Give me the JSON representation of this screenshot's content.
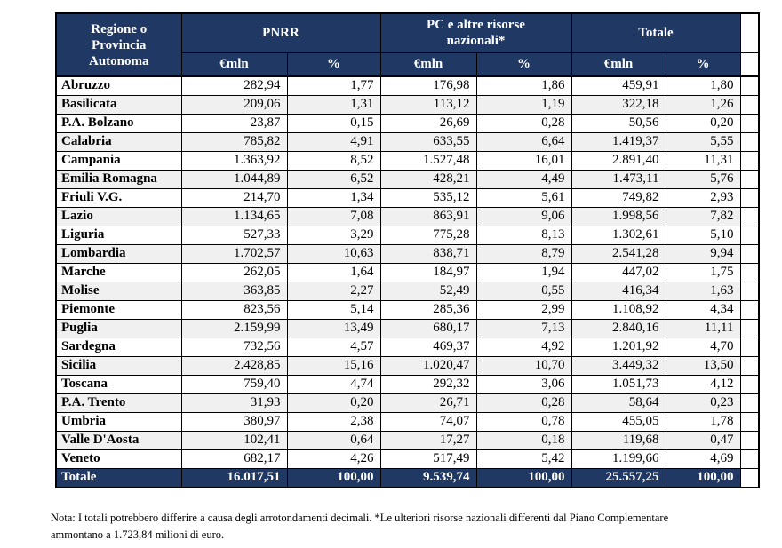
{
  "table": {
    "header": {
      "region": "Regione o\nProvincia\nAutonoma",
      "groups": [
        {
          "label": "PNRR"
        },
        {
          "label": "PC e altre risorse\nnazionali*"
        },
        {
          "label": "Totale"
        }
      ],
      "subheaders": [
        "€mln",
        "%",
        "€mln",
        "%",
        "€mln",
        "%"
      ]
    },
    "rows": [
      {
        "region": "Abruzzo",
        "values": [
          "282,94",
          "1,77",
          "176,98",
          "1,86",
          "459,91",
          "1,80"
        ]
      },
      {
        "region": "Basilicata",
        "values": [
          "209,06",
          "1,31",
          "113,12",
          "1,19",
          "322,18",
          "1,26"
        ]
      },
      {
        "region": "P.A. Bolzano",
        "values": [
          "23,87",
          "0,15",
          "26,69",
          "0,28",
          "50,56",
          "0,20"
        ]
      },
      {
        "region": "Calabria",
        "values": [
          "785,82",
          "4,91",
          "633,55",
          "6,64",
          "1.419,37",
          "5,55"
        ]
      },
      {
        "region": "Campania",
        "values": [
          "1.363,92",
          "8,52",
          "1.527,48",
          "16,01",
          "2.891,40",
          "11,31"
        ]
      },
      {
        "region": "Emilia Romagna",
        "values": [
          "1.044,89",
          "6,52",
          "428,21",
          "4,49",
          "1.473,11",
          "5,76"
        ]
      },
      {
        "region": "Friuli V.G.",
        "values": [
          "214,70",
          "1,34",
          "535,12",
          "5,61",
          "749,82",
          "2,93"
        ]
      },
      {
        "region": "Lazio",
        "values": [
          "1.134,65",
          "7,08",
          "863,91",
          "9,06",
          "1.998,56",
          "7,82"
        ]
      },
      {
        "region": "Liguria",
        "values": [
          "527,33",
          "3,29",
          "775,28",
          "8,13",
          "1.302,61",
          "5,10"
        ]
      },
      {
        "region": "Lombardia",
        "values": [
          "1.702,57",
          "10,63",
          "838,71",
          "8,79",
          "2.541,28",
          "9,94"
        ]
      },
      {
        "region": "Marche",
        "values": [
          "262,05",
          "1,64",
          "184,97",
          "1,94",
          "447,02",
          "1,75"
        ]
      },
      {
        "region": "Molise",
        "values": [
          "363,85",
          "2,27",
          "52,49",
          "0,55",
          "416,34",
          "1,63"
        ]
      },
      {
        "region": "Piemonte",
        "values": [
          "823,56",
          "5,14",
          "285,36",
          "2,99",
          "1.108,92",
          "4,34"
        ]
      },
      {
        "region": "Puglia",
        "values": [
          "2.159,99",
          "13,49",
          "680,17",
          "7,13",
          "2.840,16",
          "11,11"
        ]
      },
      {
        "region": "Sardegna",
        "values": [
          "732,56",
          "4,57",
          "469,37",
          "4,92",
          "1.201,92",
          "4,70"
        ]
      },
      {
        "region": "Sicilia",
        "values": [
          "2.428,85",
          "15,16",
          "1.020,47",
          "10,70",
          "3.449,32",
          "13,50"
        ]
      },
      {
        "region": "Toscana",
        "values": [
          "759,40",
          "4,74",
          "292,32",
          "3,06",
          "1.051,73",
          "4,12"
        ]
      },
      {
        "region": "P.A. Trento",
        "values": [
          "31,93",
          "0,20",
          "26,71",
          "0,28",
          "58,64",
          "0,23"
        ]
      },
      {
        "region": "Umbria",
        "values": [
          "380,97",
          "2,38",
          "74,07",
          "0,78",
          "455,05",
          "1,78"
        ]
      },
      {
        "region": "Valle D'Aosta",
        "values": [
          "102,41",
          "0,64",
          "17,27",
          "0,18",
          "119,68",
          "0,47"
        ]
      },
      {
        "region": "Veneto",
        "values": [
          "682,17",
          "4,26",
          "517,49",
          "5,42",
          "1.199,66",
          "4,69"
        ]
      }
    ],
    "total": {
      "label": "Totale",
      "values": [
        "16.017,51",
        "100,00",
        "9.539,74",
        "100,00",
        "25.557,25",
        "100,00"
      ]
    }
  },
  "note": "Nota: I totali potrebbero differire a causa degli arrotondamenti decimali. *Le ulteriori risorse nazionali differenti dal Piano Complementare\nammontano a 1.723,84 milioni di euro.",
  "colors": {
    "header_bg": "#1f3864",
    "alt_row_bg": "#f0f0f0",
    "border": "#000000"
  }
}
